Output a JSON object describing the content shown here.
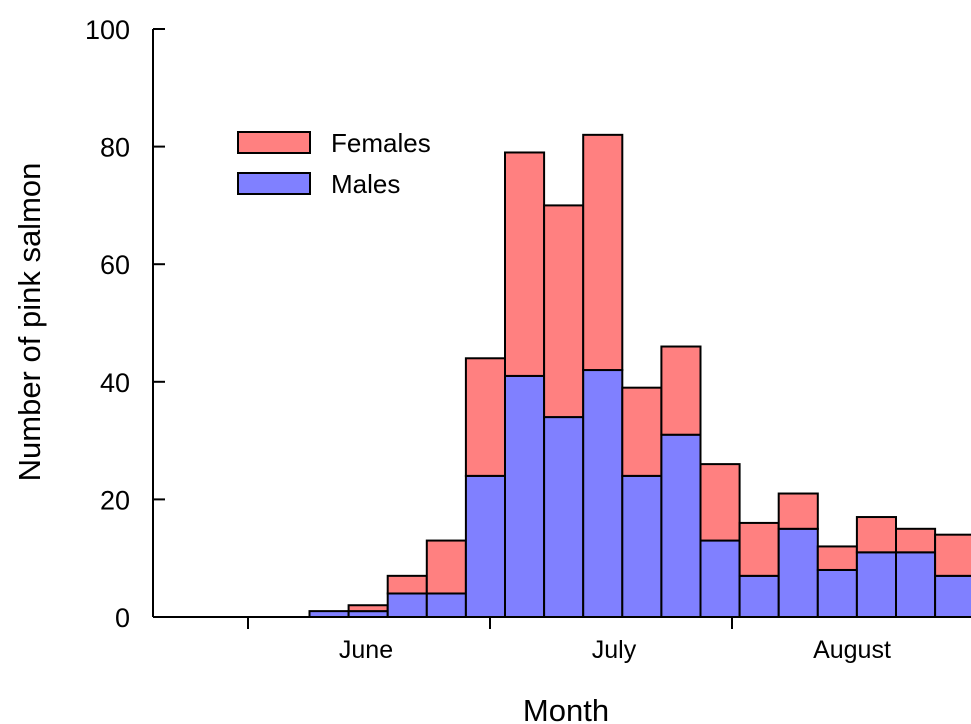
{
  "chart_data": {
    "type": "bar",
    "stacked": true,
    "title": "",
    "xlabel": "Month",
    "ylabel": "Number of pink salmon",
    "ylim": [
      0,
      100
    ],
    "yticks": [
      0,
      20,
      40,
      60,
      80,
      100
    ],
    "month_labels": [
      "June",
      "July",
      "August"
    ],
    "legend_position": "top-left",
    "grid": false,
    "series": [
      {
        "name": "Females",
        "color": "#ff8080",
        "values": [
          0,
          1,
          3,
          9,
          20,
          38,
          36,
          40,
          15,
          15,
          13,
          9,
          6,
          4,
          6,
          4,
          7
        ]
      },
      {
        "name": "Males",
        "color": "#8080ff",
        "values": [
          1,
          1,
          4,
          4,
          24,
          41,
          34,
          42,
          24,
          31,
          13,
          7,
          15,
          8,
          11,
          11,
          7
        ]
      }
    ],
    "totals": [
      1,
      2,
      7,
      13,
      44,
      79,
      70,
      82,
      39,
      46,
      26,
      16,
      21,
      12,
      17,
      15,
      14
    ]
  }
}
